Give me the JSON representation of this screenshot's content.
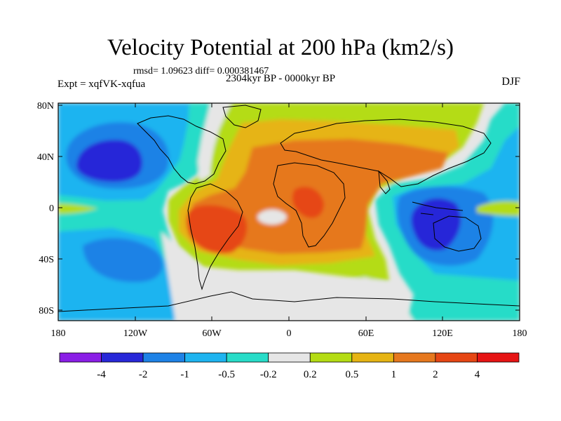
{
  "title": "Velocity Potential at 200 hPa (km2/s)",
  "stats": "rmsd= 1.09623 diff= 0.000381467",
  "experiment": "Expt = xqfVK-xqfua",
  "period": "2304kyr BP - 0000kyr BP",
  "season": "DJF",
  "lat_labels": [
    "80N",
    "40N",
    "0",
    "40S",
    "80S"
  ],
  "lon_labels": [
    "180",
    "120W",
    "60W",
    "0",
    "60E",
    "120E",
    "180"
  ],
  "colorbar": {
    "labels": [
      "-4",
      "-2",
      "-1",
      "-0.5",
      "-0.2",
      "0.2",
      "0.5",
      "1",
      "2",
      "4"
    ],
    "colors": [
      "#8a1ee6",
      "#2828d8",
      "#1e82e6",
      "#1eb4f0",
      "#28dcc8",
      "#e6e6e6",
      "#b4dc14",
      "#e6b414",
      "#e6781e",
      "#e64614",
      "#e61414"
    ]
  },
  "palette": {
    "neutral": "#e6e6e6",
    "teal": "#28dcc8",
    "cyan": "#1eb4f0",
    "blue": "#1e82e6",
    "deep_blue": "#2828d8",
    "yellow_green": "#b4dc14",
    "gold": "#e6b414",
    "orange": "#e6781e",
    "red_orange": "#e64614",
    "red": "#e61414"
  }
}
